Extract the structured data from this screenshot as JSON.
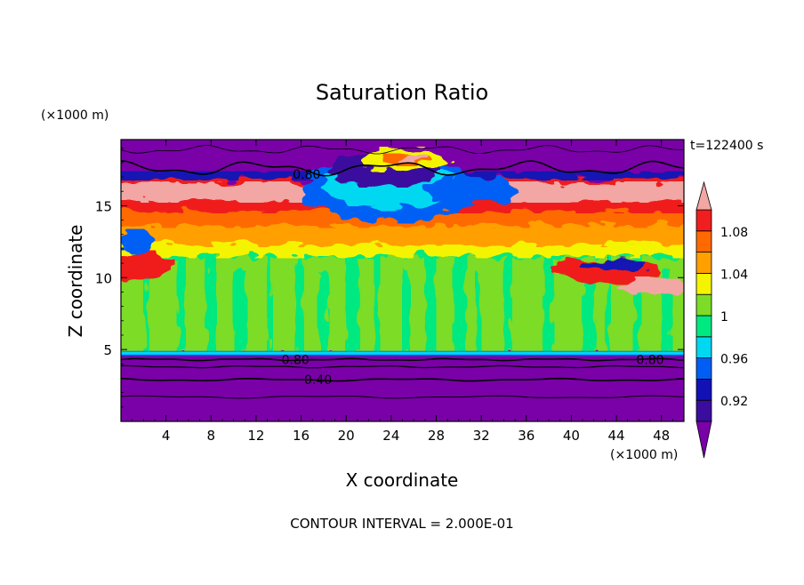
{
  "chart_data": {
    "type": "heatmap",
    "title": "Saturation Ratio",
    "xlabel": "X coordinate",
    "ylabel": "Z coordinate",
    "x_unit": "(×1000 m)",
    "y_unit": "(×1000 m)",
    "time_label": "t=122400 s",
    "footer": "CONTOUR INTERVAL = 2.000E-01",
    "xlim": [
      0,
      50
    ],
    "ylim": [
      0,
      19.6
    ],
    "x_ticks": [
      4,
      8,
      12,
      16,
      20,
      24,
      28,
      32,
      36,
      40,
      44,
      48
    ],
    "y_ticks": [
      5,
      10,
      15
    ],
    "colorbar": {
      "labels": [
        {
          "value": 0.92,
          "text": "0.92"
        },
        {
          "value": 0.96,
          "text": "0.96"
        },
        {
          "value": 1.0,
          "text": "1"
        },
        {
          "value": 1.04,
          "text": "1.04"
        },
        {
          "value": 1.08,
          "text": "1.08"
        }
      ],
      "levels": [
        0.9,
        0.92,
        0.94,
        0.96,
        0.98,
        1.0,
        1.02,
        1.04,
        1.06,
        1.08,
        1.1
      ],
      "under_color": "#7a00a8",
      "over_color": "#f2a7a4",
      "colors": [
        "#3a0d9e",
        "#1212b4",
        "#005ef5",
        "#00d8f2",
        "#00e880",
        "#7cdc28",
        "#f4f400",
        "#ffa000",
        "#ff6a00",
        "#f01e1e"
      ]
    },
    "regions": [
      {
        "level": "under",
        "x": [
          0,
          50
        ],
        "z": [
          0,
          4.5
        ]
      },
      {
        "level": "under",
        "x": [
          0,
          50
        ],
        "z": [
          17.5,
          19.6
        ]
      },
      {
        "level": "0.98-1.00",
        "x": [
          0,
          50
        ],
        "z": [
          4.6,
          13.0
        ]
      },
      {
        "level": "1.00-1.02",
        "x": [
          0,
          50
        ],
        "z": [
          4.6,
          11.5
        ]
      },
      {
        "level": "over",
        "x": [
          0,
          50
        ],
        "z": [
          15.2,
          17.2
        ]
      }
    ],
    "contour_labels": [
      {
        "text": "0.80",
        "x": 16.5,
        "z": 17.2
      },
      {
        "text": "0.80",
        "x": 15.5,
        "z": 4.3
      },
      {
        "text": "0.80",
        "x": 47.0,
        "z": 4.3
      },
      {
        "text": "0.40",
        "x": 17.5,
        "z": 2.9
      }
    ]
  }
}
